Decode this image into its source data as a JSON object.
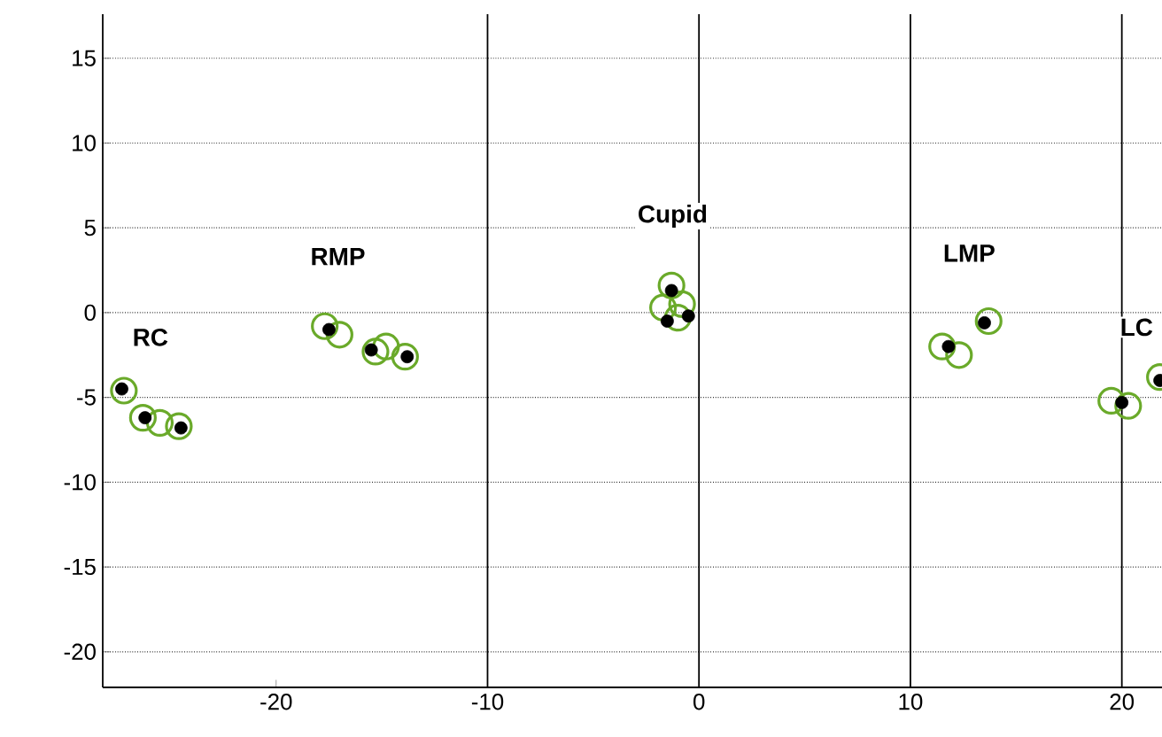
{
  "chart_data": {
    "type": "scatter",
    "series": [
      {
        "color": "#6aaa2a",
        "marker": "circle",
        "x": [
          -27.2,
          -26.3,
          -25.5,
          -24.6,
          -17.7,
          -17.0,
          -15.3,
          -14.8,
          -13.9,
          -1.3,
          -1.7,
          -1.0,
          -0.8,
          11.5,
          12.3,
          13.7,
          19.5,
          20.3,
          21.8
        ],
        "values": [
          -4.6,
          -6.2,
          -6.5,
          -6.7,
          -0.8,
          -1.3,
          -2.3,
          -2.0,
          -2.6,
          1.6,
          0.3,
          -0.3,
          0.5,
          -2.0,
          -2.5,
          -0.5,
          -5.2,
          -5.5,
          -3.8
        ]
      },
      {
        "color": "#000000",
        "marker": "circle",
        "x": [
          -27.3,
          -26.2,
          -24.5,
          -17.5,
          -15.5,
          -13.8,
          -1.3,
          -1.5,
          -0.5,
          11.8,
          13.5,
          20.0,
          21.8
        ],
        "values": [
          -4.5,
          -6.2,
          -6.8,
          -1.0,
          -2.2,
          -2.6,
          1.3,
          -0.5,
          -0.2,
          -2.0,
          -0.6,
          -5.3,
          -4.0
        ]
      }
    ],
    "xlim": [
      -28.2,
      21.9
    ],
    "ylim": [
      -22.1,
      17.6
    ],
    "xticks": [
      -20,
      -10,
      0,
      10,
      20
    ],
    "yticks": [
      -20,
      -15,
      -10,
      -5,
      0,
      5,
      10,
      15
    ],
    "grid": "y",
    "ref_lines": [
      {
        "axis": "x",
        "value": -10,
        "color": "#000000"
      },
      {
        "axis": "x",
        "value": 0,
        "color": "#000000"
      },
      {
        "axis": "x",
        "value": 10,
        "color": "#000000"
      },
      {
        "axis": "x",
        "value": 20,
        "color": "#000000"
      }
    ],
    "annotations": [
      "RC",
      "RMP",
      "Cupid",
      "LMP",
      "LC"
    ]
  }
}
